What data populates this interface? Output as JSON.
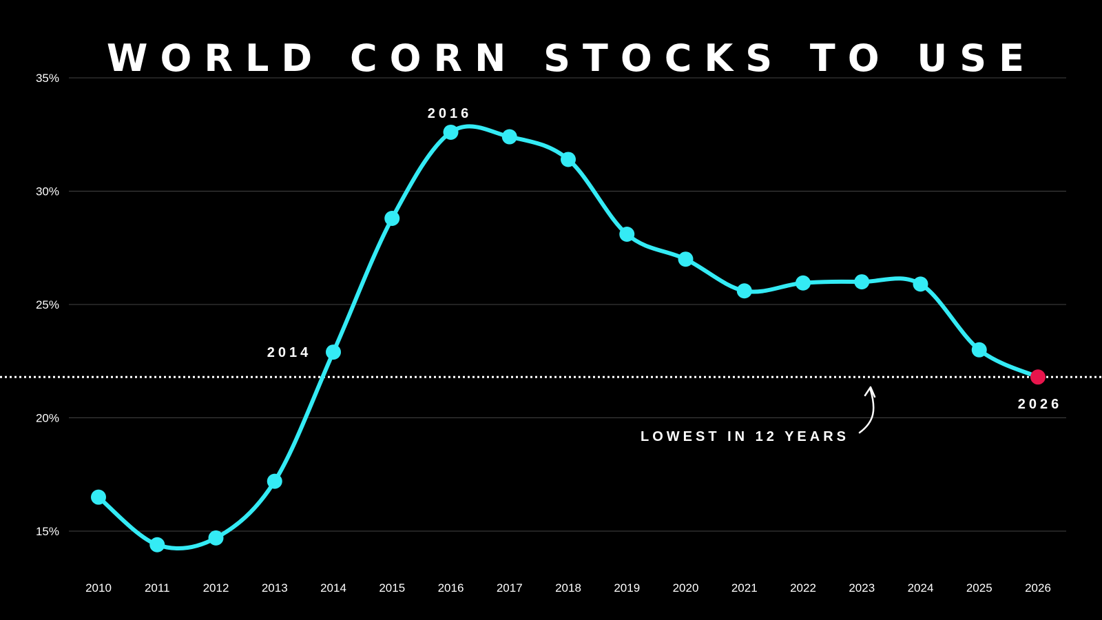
{
  "chart_data": {
    "type": "line",
    "title": "WORLD CORN STOCKS TO USE",
    "categories": [
      "2010",
      "2011",
      "2012",
      "2013",
      "2014",
      "2015",
      "2016",
      "2017",
      "2018",
      "2019",
      "2020",
      "2021",
      "2022",
      "2023",
      "2024",
      "2025",
      "2026"
    ],
    "series": [
      {
        "name": "World corn stocks to use",
        "values": [
          16.5,
          14.4,
          14.7,
          17.2,
          22.9,
          28.8,
          32.6,
          32.4,
          31.4,
          28.1,
          27.0,
          25.6,
          25.95,
          26.0,
          25.9,
          23.0,
          21.8
        ]
      }
    ],
    "ylim": [
      13,
      35
    ],
    "yticks": [
      15,
      20,
      25,
      30,
      35
    ],
    "ytick_labels": [
      "15%",
      "20%",
      "25%",
      "30%",
      "35%"
    ],
    "reference_line": {
      "value": 21.8,
      "style": "dotted"
    },
    "callouts": [
      "2014",
      "2016",
      "2026"
    ],
    "annotation": "LOWEST IN 12 YEARS",
    "colors": {
      "background": "#000000",
      "line": "#34ebf5",
      "highlight": "#e8154c",
      "grid": "#444444",
      "text": "#ffffff"
    }
  }
}
